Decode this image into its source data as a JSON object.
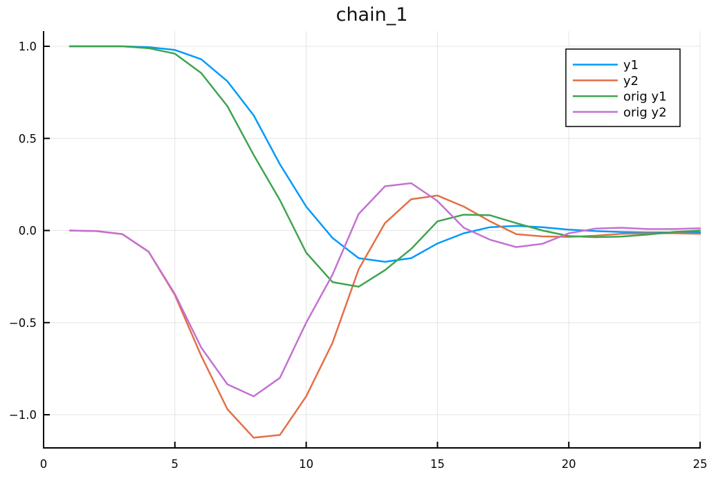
{
  "window": {
    "background": "#ffffff"
  },
  "chart_data": {
    "type": "line",
    "title": "chain_1",
    "x": [
      1,
      2,
      3,
      4,
      5,
      6,
      7,
      8,
      9,
      10,
      11,
      12,
      13,
      14,
      15,
      16,
      17,
      18,
      19,
      20,
      21,
      22,
      23,
      24,
      25
    ],
    "series": [
      {
        "name": "y1",
        "color": "#009AFA",
        "values": [
          1.0,
          1.0,
          1.0,
          0.995,
          0.98,
          0.93,
          0.81,
          0.625,
          0.36,
          0.13,
          -0.04,
          -0.15,
          -0.17,
          -0.15,
          -0.07,
          -0.015,
          0.018,
          0.025,
          0.018,
          0.005,
          -0.003,
          -0.008,
          -0.01,
          -0.01,
          -0.01
        ]
      },
      {
        "name": "y2",
        "color": "#E36F47",
        "values": [
          0.0,
          -0.003,
          -0.02,
          -0.115,
          -0.35,
          -0.68,
          -0.97,
          -1.125,
          -1.11,
          -0.9,
          -0.61,
          -0.21,
          0.04,
          0.17,
          0.19,
          0.13,
          0.05,
          -0.02,
          -0.032,
          -0.035,
          -0.028,
          -0.018,
          -0.015,
          -0.015,
          -0.018
        ]
      },
      {
        "name": "orig y1",
        "color": "#3DA44D",
        "values": [
          1.0,
          1.0,
          1.0,
          0.99,
          0.96,
          0.855,
          0.675,
          0.41,
          0.165,
          -0.12,
          -0.28,
          -0.305,
          -0.215,
          -0.1,
          0.05,
          0.086,
          0.083,
          0.04,
          0.0,
          -0.03,
          -0.036,
          -0.033,
          -0.022,
          -0.008,
          0.0
        ]
      },
      {
        "name": "orig y2",
        "color": "#C371D2",
        "values": [
          0.0,
          -0.003,
          -0.02,
          -0.115,
          -0.345,
          -0.635,
          -0.835,
          -0.9,
          -0.8,
          -0.5,
          -0.24,
          0.09,
          0.24,
          0.257,
          0.16,
          0.015,
          -0.05,
          -0.09,
          -0.072,
          -0.015,
          0.01,
          0.015,
          0.008,
          0.008,
          0.012
        ]
      }
    ],
    "xlim": [
      0,
      25
    ],
    "ylim": [
      -1.18,
      1.08
    ],
    "xticks": {
      "values": [
        0,
        5,
        10,
        15,
        20,
        25
      ],
      "labels": [
        "0",
        "5",
        "10",
        "15",
        "20",
        "25"
      ]
    },
    "yticks": {
      "values": [
        1.0,
        0.5,
        0.0,
        -0.5,
        -1.0
      ],
      "labels": [
        "1.0",
        "0.5",
        "0.0",
        "−0.5",
        "−1.0"
      ]
    },
    "grid": true,
    "legend": {
      "position": "top-right"
    },
    "axis_color": "#000000",
    "grid_color": "#E4E4E4",
    "tick_label_color": "#060606"
  }
}
